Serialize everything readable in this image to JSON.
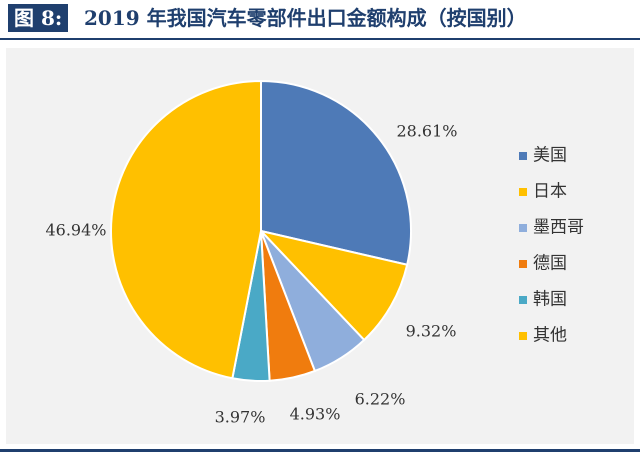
{
  "header": {
    "figure_label": "图 8:",
    "title": "2019 年我国汽车零部件出口金额构成（按国别）"
  },
  "colors": {
    "header_navy": "#1f3f6e",
    "plot_background": "#f2f2f2"
  },
  "chart_data": {
    "type": "pie",
    "title": "2019 年我国汽车零部件出口金额构成（按国别）",
    "start_angle": "12 o'clock",
    "direction": "clockwise",
    "legend_position": "right",
    "slices": [
      {
        "name": "美国",
        "value": 28.61,
        "label": "28.61%",
        "color": "#4e7ab7"
      },
      {
        "name": "日本",
        "value": 9.32,
        "label": "9.32%",
        "color": "#ffc000"
      },
      {
        "name": "墨西哥",
        "value": 6.22,
        "label": "6.22%",
        "color": "#8faedc"
      },
      {
        "name": "德国",
        "value": 4.93,
        "label": "4.93%",
        "color": "#f07c0e"
      },
      {
        "name": "韩国",
        "value": 3.97,
        "label": "3.97%",
        "color": "#4aa9c6"
      },
      {
        "name": "其他",
        "value": 46.94,
        "label": "46.94%",
        "color": "#ffc000"
      }
    ]
  }
}
